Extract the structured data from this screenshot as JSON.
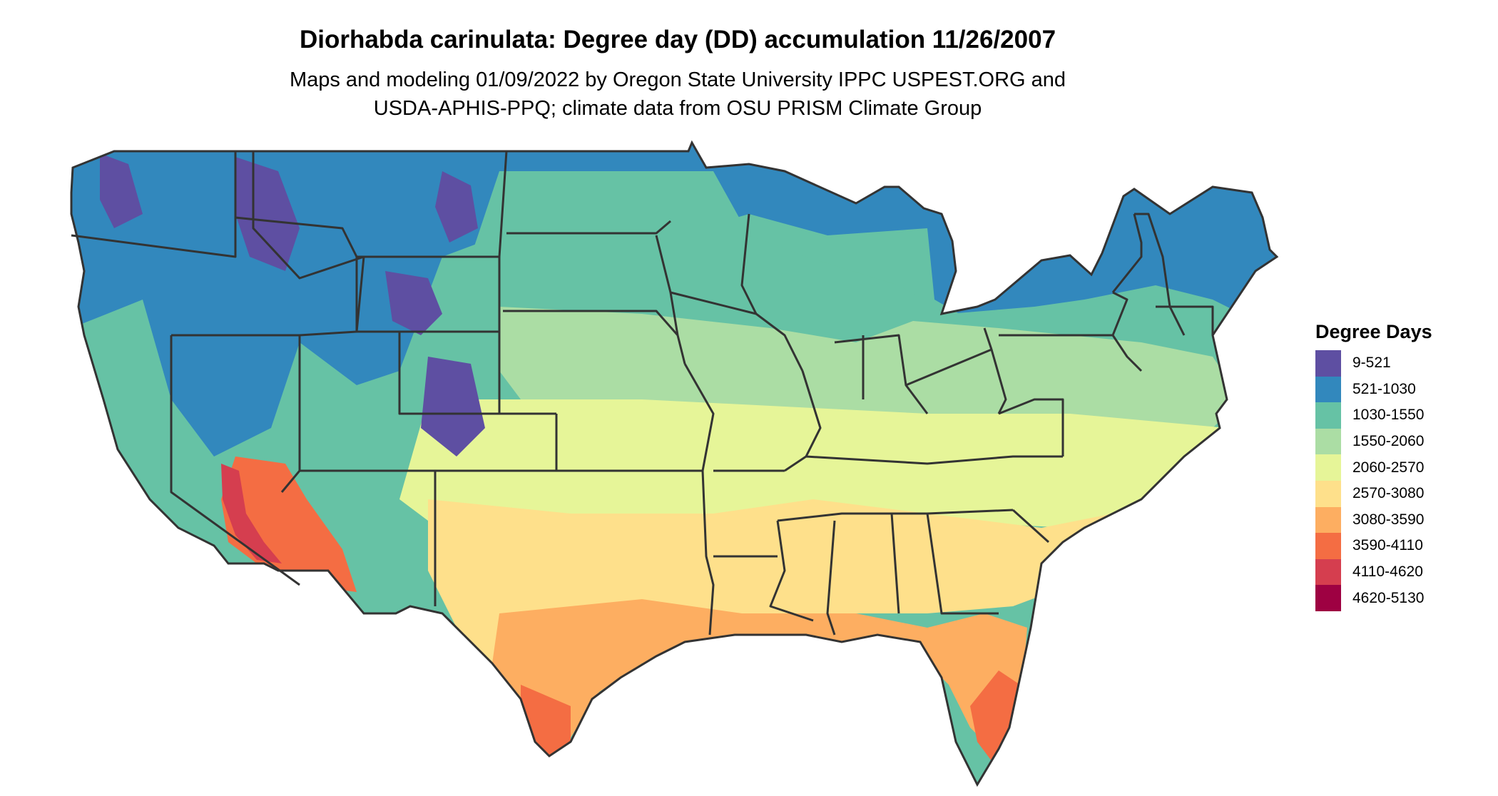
{
  "title": "Diorhabda carinulata: Degree day (DD) accumulation 11/26/2007",
  "subtitle_line1": "Maps and modeling 01/09/2022 by Oregon State University IPPC USPEST.ORG and",
  "subtitle_line2": "USDA-APHIS-PPQ; climate data from OSU PRISM Climate Group",
  "legend": {
    "title": "Degree Days",
    "items": [
      {
        "label": "9-521",
        "color": "#5e4fa2"
      },
      {
        "label": "521-1030",
        "color": "#3288bd"
      },
      {
        "label": "1030-1550",
        "color": "#66c2a5"
      },
      {
        "label": "1550-2060",
        "color": "#abdda4"
      },
      {
        "label": "2060-2570",
        "color": "#e6f598"
      },
      {
        "label": "2570-3080",
        "color": "#fee08b"
      },
      {
        "label": "3080-3590",
        "color": "#fdae61"
      },
      {
        "label": "3590-4110",
        "color": "#f46d43"
      },
      {
        "label": "4110-4620",
        "color": "#d53e4f"
      },
      {
        "label": "4620-5130",
        "color": "#9e0142"
      }
    ]
  }
}
